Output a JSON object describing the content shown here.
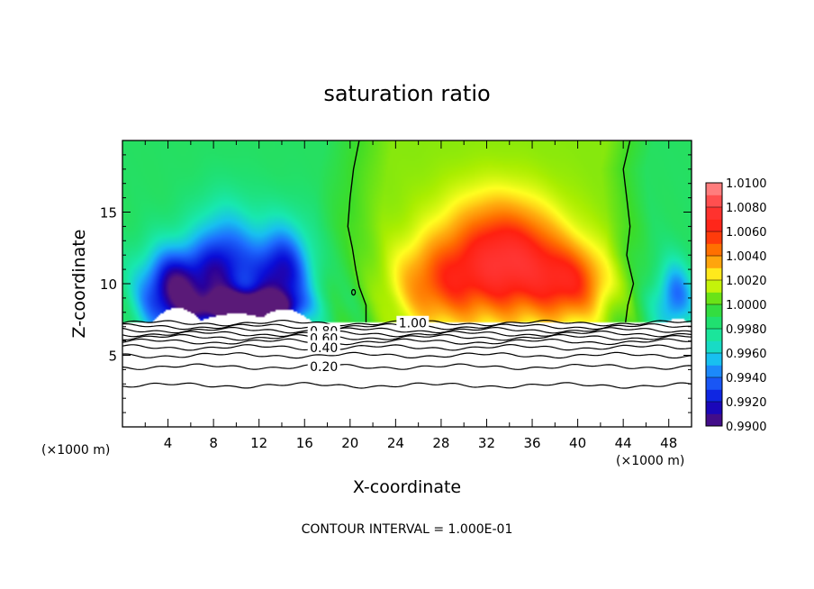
{
  "chart_data": {
    "type": "heatmap",
    "title": "saturation ratio",
    "xlabel": "X-coordinate",
    "ylabel": "Z-coordinate",
    "x_unit_left": "(×1000 m)",
    "x_unit_right": "(×1000 m)",
    "footer": "CONTOUR INTERVAL = 1.000E-01",
    "xlim": [
      0,
      50
    ],
    "ylim": [
      0,
      20
    ],
    "xticks": [
      4,
      8,
      12,
      16,
      20,
      24,
      28,
      32,
      36,
      40,
      44,
      48
    ],
    "xtick_labels": [
      "4",
      "8",
      "12",
      "16",
      "20",
      "24",
      "28",
      "32",
      "36",
      "40",
      "44",
      "48"
    ],
    "yticks": [
      5,
      10,
      15
    ],
    "ytick_labels": [
      "5",
      "10",
      "15"
    ],
    "colorbar": {
      "min": 0.99,
      "max": 1.01,
      "levels": [
        0.99,
        0.992,
        0.994,
        0.996,
        0.998,
        1.0,
        1.002,
        1.004,
        1.006,
        1.008,
        1.01
      ],
      "labels": [
        "0.9900",
        "0.9920",
        "0.9940",
        "0.9960",
        "0.9980",
        "1.0000",
        "1.0020",
        "1.0040",
        "1.0060",
        "1.0080",
        "1.0100"
      ]
    },
    "colormap_stops": [
      [
        0.99,
        "#5a1a78"
      ],
      [
        0.991,
        "#2a009a"
      ],
      [
        0.992,
        "#0a0ed8"
      ],
      [
        0.994,
        "#1e6eff"
      ],
      [
        0.9955,
        "#18c0f0"
      ],
      [
        0.997,
        "#18e8b0"
      ],
      [
        0.9985,
        "#20e070"
      ],
      [
        1.0,
        "#3cdc28"
      ],
      [
        1.0012,
        "#aaee00"
      ],
      [
        1.0022,
        "#ffff20"
      ],
      [
        1.0033,
        "#ffb010"
      ],
      [
        1.0045,
        "#ff7000"
      ],
      [
        1.006,
        "#ff2010"
      ],
      [
        1.008,
        "#ff3838"
      ],
      [
        1.01,
        "#ff9494"
      ]
    ],
    "contour_labels": [
      "1.00",
      "0.80",
      "0.60",
      "0.40",
      "0.20"
    ],
    "contour_lines_below": [
      {
        "level": "1.00",
        "z": 7.25
      },
      {
        "level": "0.90",
        "z": 7.0
      },
      {
        "level": "0.80",
        "z": 6.75
      },
      {
        "level": "0.70",
        "z": 6.5
      },
      {
        "level": "0.60",
        "z": 6.25
      },
      {
        "level": "0.50",
        "z": 5.95
      },
      {
        "level": "0.40",
        "z": 5.55
      },
      {
        "level": "0.30",
        "z": 5.0
      },
      {
        "level": "0.20",
        "z": 4.2
      },
      {
        "level": "0.10",
        "z": 2.9
      }
    ],
    "one_contour_boundaries": {
      "left": [
        [
          20.8,
          20
        ],
        [
          20.3,
          18
        ],
        [
          20.0,
          16
        ],
        [
          19.8,
          14
        ],
        [
          20.2,
          12.5
        ],
        [
          20.5,
          11
        ],
        [
          20.8,
          9.8
        ],
        [
          21.4,
          8.5
        ],
        [
          21.4,
          7.3
        ]
      ],
      "right": [
        [
          44.6,
          20
        ],
        [
          44.0,
          18
        ],
        [
          44.3,
          16
        ],
        [
          44.6,
          14
        ],
        [
          44.3,
          12
        ],
        [
          44.9,
          10
        ],
        [
          44.4,
          8.5
        ],
        [
          44.2,
          7.3
        ]
      ]
    },
    "field_regions": [
      {
        "note": "dry plume",
        "x": 4.5,
        "z": 9.5,
        "sx": 3.0,
        "sz": 3.0,
        "value": -0.0085
      },
      {
        "note": "dry plume",
        "x": 9.0,
        "z": 11.0,
        "sx": 2.8,
        "sz": 4.0,
        "value": -0.0065
      },
      {
        "note": "dry plume",
        "x": 14.0,
        "z": 10.5,
        "sx": 2.5,
        "sz": 3.5,
        "value": -0.0075
      },
      {
        "note": "dry plume",
        "x": 11.0,
        "z": 8.3,
        "sx": 4.0,
        "sz": 1.1,
        "value": -0.009
      },
      {
        "note": "dry plume",
        "x": 48.5,
        "z": 9.0,
        "sx": 1.6,
        "sz": 2.5,
        "value": -0.005
      },
      {
        "note": "moist core",
        "x": 34.5,
        "z": 11.0,
        "sx": 4.5,
        "sz": 3.5,
        "value": 0.0052
      },
      {
        "note": "moist core",
        "x": 28.0,
        "z": 10.0,
        "sx": 4.0,
        "sz": 3.0,
        "value": 0.0038
      },
      {
        "note": "moist core",
        "x": 39.5,
        "z": 10.0,
        "sx": 3.0,
        "sz": 2.5,
        "value": 0.004
      },
      {
        "note": "moist core",
        "x": 32.5,
        "z": 13.5,
        "sx": 5.0,
        "sz": 3.5,
        "value": 0.0024
      }
    ]
  }
}
